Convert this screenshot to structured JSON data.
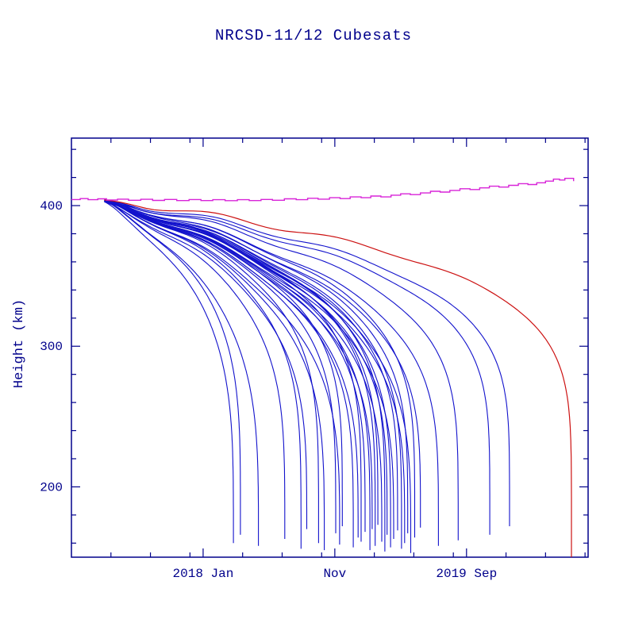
{
  "page": {
    "background": "#ffffff"
  },
  "chart_data": {
    "type": "line",
    "title": "NRCSD-11/12 Cubesats",
    "ylabel": "Height (km)",
    "xlabel": "",
    "grid": false,
    "legend": "none",
    "axes": {
      "x_unit": "days (calendar-labelled)",
      "x_range_days": [
        0,
        1177
      ],
      "y_unit": "km",
      "y_range_km": [
        150,
        448
      ],
      "x_major_ticks": [
        {
          "day": 300,
          "label": "2018 Jan"
        },
        {
          "day": 600,
          "label": "Nov"
        },
        {
          "day": 900,
          "label": "2019 Sep"
        }
      ],
      "x_minor_ticks_days": [
        90,
        180,
        270,
        390,
        480,
        570,
        690,
        780,
        870,
        990,
        1080,
        1170
      ],
      "y_major_ticks": [
        {
          "km": 200,
          "label": "200"
        },
        {
          "km": 300,
          "label": "300"
        },
        {
          "km": 400,
          "label": "400"
        }
      ],
      "y_minor_ticks_km": [
        160,
        180,
        220,
        240,
        260,
        280,
        320,
        340,
        360,
        380,
        420,
        440
      ],
      "ticks_on_all_sides": true
    },
    "colors": {
      "frame_and_text": "#00008B",
      "cubesat_curves": "#1212CC",
      "late_decay_curve": "#CC1111",
      "station_orbit_curve": "#D824D8"
    },
    "series": {
      "cubesats_blue": {
        "color": "#1212CC",
        "deploy_day": 75,
        "start_height_km": 403.5,
        "satellite_fields": [
          "end_day",
          "end_height_km",
          "shape_exponent"
        ],
        "satellites": [
          [
            369,
            160,
            0.26
          ],
          [
            385,
            166,
            0.24
          ],
          [
            426,
            158,
            0.27
          ],
          [
            486,
            163,
            0.25
          ],
          [
            523,
            156,
            0.23
          ],
          [
            536,
            170,
            0.27
          ],
          [
            563,
            160,
            0.22
          ],
          [
            576,
            155,
            0.26
          ],
          [
            602,
            167,
            0.24
          ],
          [
            611,
            159,
            0.28
          ],
          [
            617,
            172,
            0.23
          ],
          [
            642,
            157,
            0.25
          ],
          [
            653,
            164,
            0.27
          ],
          [
            660,
            161,
            0.22
          ],
          [
            669,
            168,
            0.26
          ],
          [
            680,
            155,
            0.24
          ],
          [
            685,
            170,
            0.28
          ],
          [
            692,
            158,
            0.23
          ],
          [
            698,
            173,
            0.25
          ],
          [
            707,
            161,
            0.27
          ],
          [
            714,
            154,
            0.22
          ],
          [
            719,
            166,
            0.26
          ],
          [
            727,
            157,
            0.24
          ],
          [
            734,
            163,
            0.28
          ],
          [
            743,
            169,
            0.25
          ],
          [
            752,
            156,
            0.23
          ],
          [
            759,
            160,
            0.27
          ],
          [
            766,
            167,
            0.24
          ],
          [
            773,
            153,
            0.26
          ],
          [
            782,
            164,
            0.22
          ],
          [
            795,
            171,
            0.25
          ],
          [
            836,
            158,
            0.23
          ],
          [
            881,
            162,
            0.21
          ],
          [
            953,
            166,
            0.2
          ],
          [
            998,
            172,
            0.2
          ]
        ]
      },
      "slowest_decay_red": {
        "color": "#CC1111",
        "deploy_day": 75,
        "start_height_km": 404,
        "end_day": 1139,
        "end_height_km": 150,
        "shape_exponent": 0.17
      },
      "station_orbit_magenta": {
        "color": "#D824D8",
        "style": "steps",
        "points_day_km": [
          [
            0,
            404.3
          ],
          [
            20,
            405.0
          ],
          [
            38,
            404.2
          ],
          [
            60,
            404.8
          ],
          [
            80,
            404.0
          ],
          [
            105,
            404.6
          ],
          [
            130,
            403.8
          ],
          [
            158,
            404.5
          ],
          [
            185,
            403.7
          ],
          [
            212,
            404.4
          ],
          [
            240,
            403.6
          ],
          [
            268,
            404.3
          ],
          [
            295,
            403.6
          ],
          [
            322,
            404.2
          ],
          [
            350,
            403.5
          ],
          [
            378,
            404.2
          ],
          [
            405,
            403.6
          ],
          [
            432,
            404.4
          ],
          [
            458,
            403.8
          ],
          [
            485,
            404.8
          ],
          [
            512,
            404.2
          ],
          [
            538,
            405.2
          ],
          [
            562,
            404.6
          ],
          [
            588,
            405.6
          ],
          [
            612,
            405.0
          ],
          [
            635,
            406.2
          ],
          [
            660,
            405.6
          ],
          [
            682,
            406.8
          ],
          [
            705,
            406.2
          ],
          [
            728,
            407.4
          ],
          [
            750,
            408.4
          ],
          [
            772,
            407.8
          ],
          [
            795,
            409.0
          ],
          [
            818,
            410.2
          ],
          [
            840,
            409.6
          ],
          [
            862,
            410.8
          ],
          [
            885,
            412.0
          ],
          [
            908,
            411.4
          ],
          [
            930,
            412.6
          ],
          [
            952,
            413.8
          ],
          [
            974,
            413.2
          ],
          [
            996,
            414.4
          ],
          [
            1018,
            415.6
          ],
          [
            1040,
            415.0
          ],
          [
            1060,
            416.2
          ],
          [
            1080,
            417.4
          ],
          [
            1098,
            418.8
          ],
          [
            1112,
            418.2
          ],
          [
            1124,
            419.4
          ],
          [
            1144,
            417.4
          ]
        ]
      }
    }
  }
}
